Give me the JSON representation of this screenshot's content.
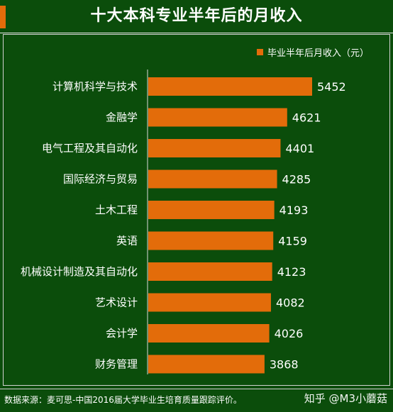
{
  "title": "十大本科专业半年后的月收入",
  "source": "数据来源：麦可思-中国2016届大学毕业生培育质量跟踪评价。",
  "watermark": "知乎 @M3小蘑菇",
  "colors": {
    "background": "#0b4d0b",
    "bar": "#e36c0a",
    "text": "#ffffff"
  },
  "chart_data": {
    "type": "bar",
    "orientation": "horizontal",
    "title": "十大本科专业半年后的月收入",
    "categories": [
      "计算机科学与技术",
      "金融学",
      "电气工程及其自动化",
      "国际经济与贸易",
      "土木工程",
      "英语",
      "机械设计制造及其自动化",
      "艺术设计",
      "会计学",
      "财务管理"
    ],
    "series": [
      {
        "name": "毕业半年后月收入（元）",
        "values": [
          5452,
          4621,
          4401,
          4285,
          4193,
          4159,
          4123,
          4082,
          4026,
          3868
        ]
      }
    ],
    "legend_position": "top-right",
    "grid": false,
    "data_labels": true
  }
}
